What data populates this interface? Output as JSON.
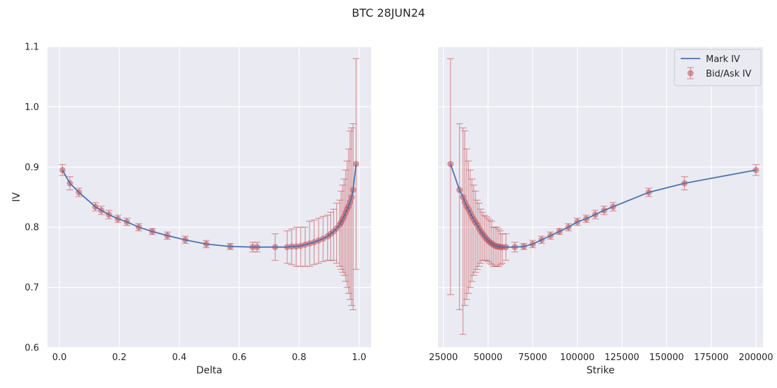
{
  "figure": {
    "title": "BTC 28JUN24"
  },
  "colors": {
    "background": "#eaeaf2",
    "grid": "#ffffff",
    "line": "#4c72b0",
    "points": "#c44e52"
  },
  "legend": {
    "placement": "upper-right",
    "entries": [
      "Mark IV",
      "Bid/Ask IV"
    ]
  },
  "chart_data": [
    {
      "type": "line",
      "xlabel": "Delta",
      "ylabel": "IV",
      "xlim": [
        -0.04,
        1.04
      ],
      "ylim": [
        0.6,
        1.1
      ],
      "xticks": [
        "0.0",
        "0.2",
        "0.4",
        "0.6",
        "0.8",
        "1.0"
      ],
      "yticks": [
        "0.6",
        "0.7",
        "0.8",
        "0.9",
        "1.0",
        "1.1"
      ],
      "grid": true,
      "series": [
        {
          "kind": "line",
          "x": [
            0.01,
            0.035,
            0.065,
            0.12,
            0.14,
            0.165,
            0.195,
            0.225,
            0.265,
            0.31,
            0.36,
            0.42,
            0.49,
            0.57,
            0.645,
            0.66,
            0.72,
            0.76,
            0.775,
            0.79,
            0.805,
            0.82,
            0.835,
            0.85,
            0.865,
            0.88,
            0.895,
            0.905,
            0.915,
            0.925,
            0.935,
            0.94,
            0.945,
            0.95,
            0.955,
            0.96,
            0.965,
            0.97,
            0.975,
            0.98,
            0.99
          ],
          "y": [
            0.895,
            0.873,
            0.858,
            0.834,
            0.828,
            0.821,
            0.814,
            0.809,
            0.8,
            0.793,
            0.786,
            0.779,
            0.772,
            0.768,
            0.767,
            0.767,
            0.767,
            0.767,
            0.768,
            0.768,
            0.769,
            0.771,
            0.773,
            0.775,
            0.778,
            0.781,
            0.785,
            0.789,
            0.793,
            0.798,
            0.804,
            0.808,
            0.813,
            0.818,
            0.824,
            0.83,
            0.835,
            0.842,
            0.85,
            0.862,
            0.905
          ]
        },
        {
          "kind": "errorbar",
          "x": [
            0.01,
            0.035,
            0.065,
            0.12,
            0.14,
            0.165,
            0.195,
            0.225,
            0.265,
            0.31,
            0.36,
            0.42,
            0.49,
            0.57,
            0.645,
            0.66,
            0.72,
            0.76,
            0.775,
            0.79,
            0.805,
            0.82,
            0.835,
            0.85,
            0.865,
            0.88,
            0.895,
            0.905,
            0.915,
            0.925,
            0.935,
            0.94,
            0.945,
            0.95,
            0.955,
            0.96,
            0.965,
            0.97,
            0.975,
            0.98,
            0.99
          ],
          "y": [
            0.895,
            0.873,
            0.858,
            0.834,
            0.828,
            0.821,
            0.814,
            0.809,
            0.8,
            0.793,
            0.786,
            0.779,
            0.772,
            0.768,
            0.767,
            0.767,
            0.767,
            0.767,
            0.768,
            0.768,
            0.769,
            0.771,
            0.773,
            0.775,
            0.778,
            0.781,
            0.785,
            0.789,
            0.793,
            0.798,
            0.804,
            0.808,
            0.813,
            0.818,
            0.824,
            0.83,
            0.835,
            0.842,
            0.85,
            0.862,
            0.905
          ],
          "low": [
            0.886,
            0.862,
            0.851,
            0.827,
            0.821,
            0.814,
            0.808,
            0.803,
            0.794,
            0.788,
            0.78,
            0.773,
            0.766,
            0.763,
            0.759,
            0.759,
            0.745,
            0.74,
            0.738,
            0.735,
            0.735,
            0.735,
            0.735,
            0.738,
            0.74,
            0.743,
            0.745,
            0.745,
            0.745,
            0.74,
            0.735,
            0.73,
            0.725,
            0.72,
            0.71,
            0.7,
            0.69,
            0.68,
            0.67,
            0.663,
            0.73
          ],
          "high": [
            0.904,
            0.884,
            0.865,
            0.841,
            0.835,
            0.828,
            0.82,
            0.815,
            0.806,
            0.798,
            0.792,
            0.785,
            0.778,
            0.773,
            0.775,
            0.775,
            0.789,
            0.794,
            0.797,
            0.8,
            0.8,
            0.8,
            0.81,
            0.812,
            0.815,
            0.818,
            0.82,
            0.825,
            0.83,
            0.84,
            0.845,
            0.86,
            0.87,
            0.88,
            0.895,
            0.91,
            0.93,
            0.96,
            0.965,
            0.972,
            1.08
          ]
        }
      ]
    },
    {
      "type": "line",
      "xlabel": "Strike",
      "ylabel": "",
      "xlim": [
        22000,
        204000
      ],
      "ylim": [
        0.6,
        1.1
      ],
      "xticks": [
        "25000",
        "50000",
        "75000",
        "100000",
        "125000",
        "150000",
        "175000",
        "200000"
      ],
      "grid": true,
      "series": [
        {
          "name": "Mark IV",
          "kind": "line",
          "x": [
            29000,
            34000,
            36000,
            37000,
            38000,
            39000,
            40000,
            41000,
            42000,
            43000,
            44000,
            45000,
            46000,
            47000,
            48000,
            49000,
            50000,
            51000,
            52000,
            53000,
            54000,
            55000,
            56000,
            57000,
            58000,
            60000,
            65000,
            70000,
            75000,
            80000,
            85000,
            90000,
            95000,
            100000,
            105000,
            110000,
            115000,
            120000,
            140000,
            160000,
            200000
          ],
          "y": [
            0.905,
            0.862,
            0.85,
            0.842,
            0.835,
            0.83,
            0.824,
            0.818,
            0.813,
            0.808,
            0.804,
            0.798,
            0.793,
            0.789,
            0.785,
            0.781,
            0.778,
            0.775,
            0.773,
            0.771,
            0.769,
            0.768,
            0.768,
            0.767,
            0.767,
            0.767,
            0.767,
            0.768,
            0.772,
            0.779,
            0.786,
            0.793,
            0.8,
            0.809,
            0.814,
            0.821,
            0.828,
            0.834,
            0.858,
            0.873,
            0.895
          ]
        },
        {
          "name": "Bid/Ask IV",
          "kind": "errorbar",
          "x": [
            29000,
            34000,
            36000,
            37000,
            38000,
            39000,
            40000,
            41000,
            42000,
            43000,
            44000,
            45000,
            46000,
            47000,
            48000,
            49000,
            50000,
            51000,
            52000,
            53000,
            54000,
            55000,
            56000,
            57000,
            58000,
            60000,
            65000,
            70000,
            75000,
            80000,
            85000,
            90000,
            95000,
            100000,
            105000,
            110000,
            115000,
            120000,
            140000,
            160000,
            200000
          ],
          "y": [
            0.905,
            0.862,
            0.85,
            0.842,
            0.835,
            0.83,
            0.824,
            0.818,
            0.813,
            0.808,
            0.804,
            0.798,
            0.793,
            0.789,
            0.785,
            0.781,
            0.778,
            0.775,
            0.773,
            0.771,
            0.769,
            0.768,
            0.768,
            0.767,
            0.767,
            0.767,
            0.767,
            0.768,
            0.772,
            0.779,
            0.786,
            0.793,
            0.8,
            0.809,
            0.814,
            0.821,
            0.828,
            0.834,
            0.858,
            0.873,
            0.895
          ],
          "low": [
            0.688,
            0.663,
            0.622,
            0.67,
            0.68,
            0.69,
            0.7,
            0.71,
            0.72,
            0.725,
            0.73,
            0.735,
            0.74,
            0.745,
            0.745,
            0.745,
            0.743,
            0.74,
            0.738,
            0.735,
            0.735,
            0.735,
            0.735,
            0.738,
            0.74,
            0.745,
            0.759,
            0.763,
            0.766,
            0.773,
            0.78,
            0.788,
            0.794,
            0.803,
            0.808,
            0.814,
            0.821,
            0.827,
            0.851,
            0.862,
            0.886
          ],
          "high": [
            1.08,
            0.972,
            0.965,
            0.96,
            0.93,
            0.91,
            0.895,
            0.88,
            0.87,
            0.86,
            0.845,
            0.84,
            0.83,
            0.825,
            0.82,
            0.818,
            0.815,
            0.812,
            0.81,
            0.8,
            0.8,
            0.8,
            0.797,
            0.794,
            0.789,
            0.789,
            0.775,
            0.773,
            0.778,
            0.785,
            0.792,
            0.798,
            0.806,
            0.815,
            0.82,
            0.828,
            0.835,
            0.841,
            0.865,
            0.884,
            0.904
          ]
        }
      ]
    }
  ]
}
